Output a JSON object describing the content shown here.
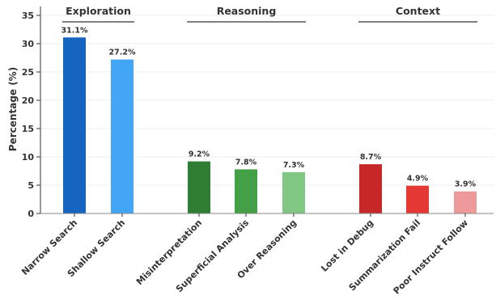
{
  "chart_data": {
    "type": "bar",
    "ylabel": "Percentage (%)",
    "xlabel": "",
    "title": "",
    "ylim": [
      0,
      36
    ],
    "yticks": [
      0,
      5,
      10,
      15,
      20,
      25,
      30,
      35
    ],
    "grid": "horizontal",
    "groups": [
      {
        "name": "Exploration",
        "bars": [
          {
            "category": "Narrow Search",
            "value": 31.1,
            "label": "31.1%",
            "color": "#1565c0"
          },
          {
            "category": "Shallow Search",
            "value": 27.2,
            "label": "27.2%",
            "color": "#42a5f5"
          }
        ]
      },
      {
        "name": "Reasoning",
        "bars": [
          {
            "category": "Misinterpretation",
            "value": 9.2,
            "label": "9.2%",
            "color": "#2e7d32"
          },
          {
            "category": "Superficial Analysis",
            "value": 7.8,
            "label": "7.8%",
            "color": "#43a047"
          },
          {
            "category": "Over Reasoning",
            "value": 7.3,
            "label": "7.3%",
            "color": "#81c784"
          }
        ]
      },
      {
        "name": "Context",
        "bars": [
          {
            "category": "Lost in Debug",
            "value": 8.7,
            "label": "8.7%",
            "color": "#c62828"
          },
          {
            "category": "Summarization Fail",
            "value": 4.9,
            "label": "4.9%",
            "color": "#e53935"
          },
          {
            "category": "Poor Instruct Follow",
            "value": 3.9,
            "label": "3.9%",
            "color": "#ef9a9a"
          }
        ]
      }
    ]
  }
}
